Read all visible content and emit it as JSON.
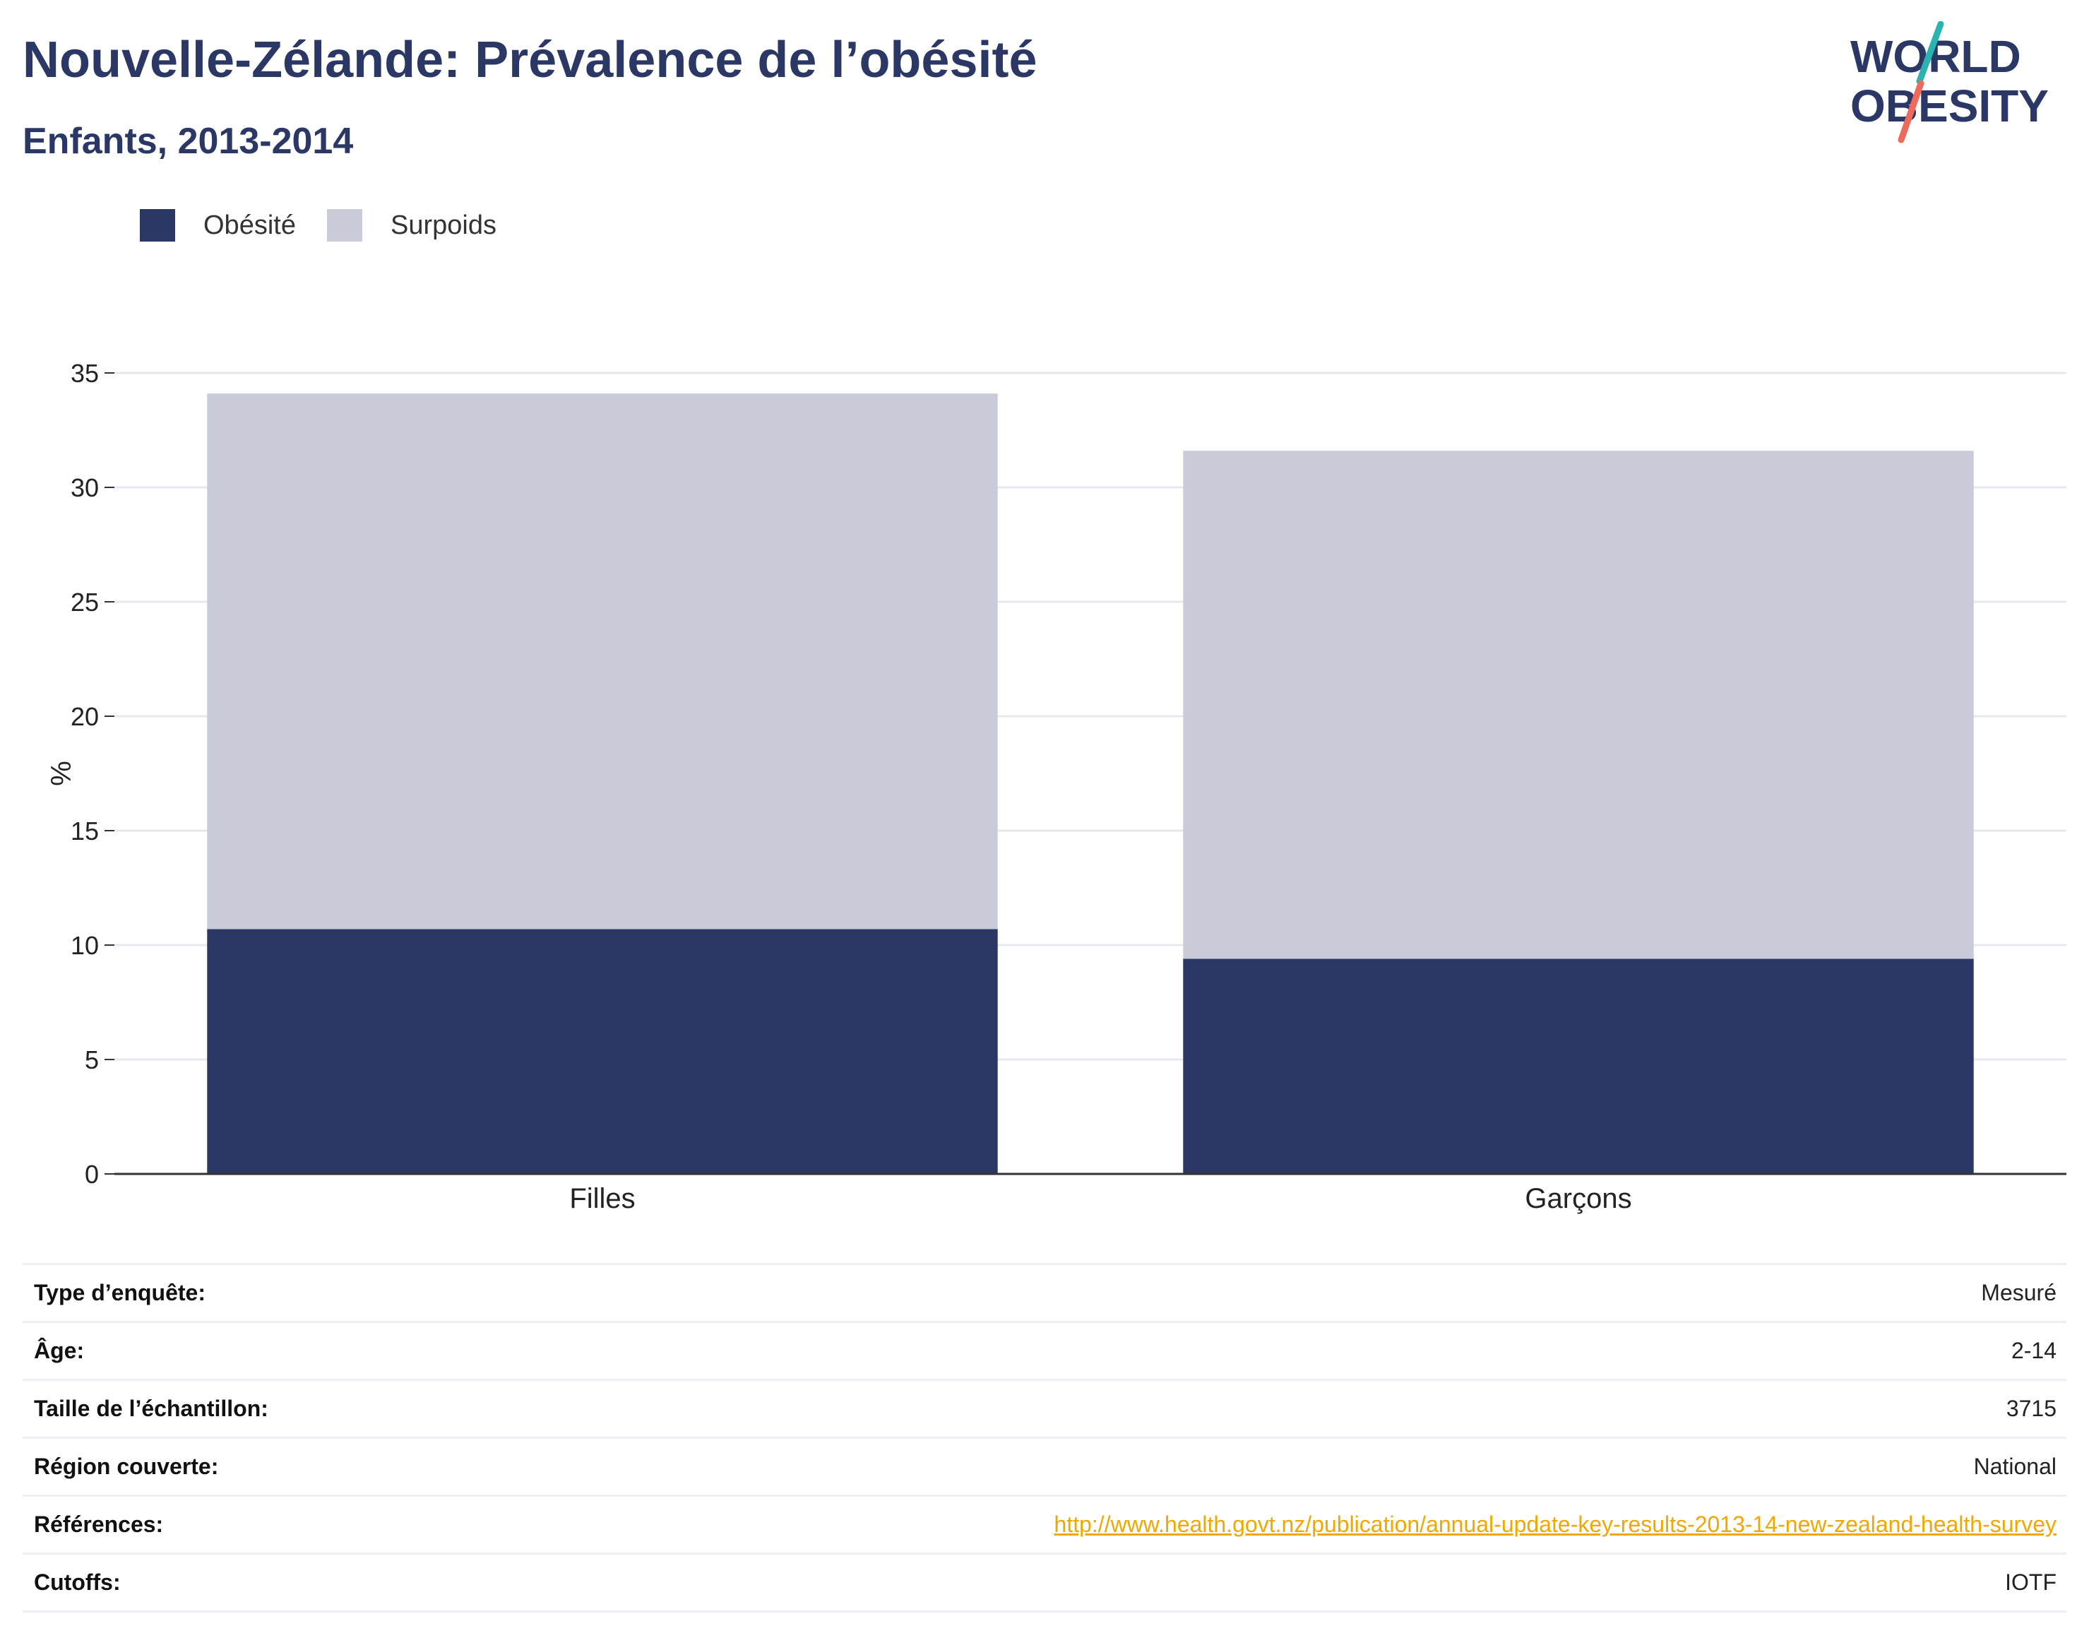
{
  "header": {
    "title": "Nouvelle-Zélande: Prévalence de l’obésité",
    "subtitle": "Enfants, 2013-2014"
  },
  "logo": {
    "line1": "WORLD",
    "line2": "OBESITY",
    "colors": {
      "text": "#2b3764",
      "slash_top": "#2bb3b1",
      "slash_bottom": "#ee6a5a"
    }
  },
  "legend": [
    {
      "label": "Obésité",
      "color": "#2b3764"
    },
    {
      "label": "Surpoids",
      "color": "#c9ccd8"
    }
  ],
  "chart_data": {
    "type": "bar",
    "stacked": true,
    "categories": [
      "Filles",
      "Garçons"
    ],
    "series": [
      {
        "name": "Obésité",
        "color": "#2b3764",
        "values": [
          10.7,
          9.4
        ]
      },
      {
        "name": "Surpoids",
        "color": "#c9ccd8",
        "values": [
          23.4,
          22.2
        ]
      }
    ],
    "ylabel": "%",
    "xlabel": "",
    "ylim": [
      0,
      35
    ],
    "yticks": [
      0,
      5,
      10,
      15,
      20,
      25,
      30,
      35
    ],
    "grid": true,
    "legend_position": "top-left"
  },
  "meta": [
    {
      "key": "Type d’enquête:",
      "value": "Mesuré"
    },
    {
      "key": "Âge:",
      "value": "2-14"
    },
    {
      "key": "Taille de l’échantillon:",
      "value": "3715"
    },
    {
      "key": "Région couverte:",
      "value": "National"
    },
    {
      "key": "Références:",
      "value": "http://www.health.govt.nz/publication/annual-update-key-results-2013-14-new-zealand-health-survey",
      "is_link": true
    },
    {
      "key": "Cutoffs:",
      "value": "IOTF"
    }
  ]
}
